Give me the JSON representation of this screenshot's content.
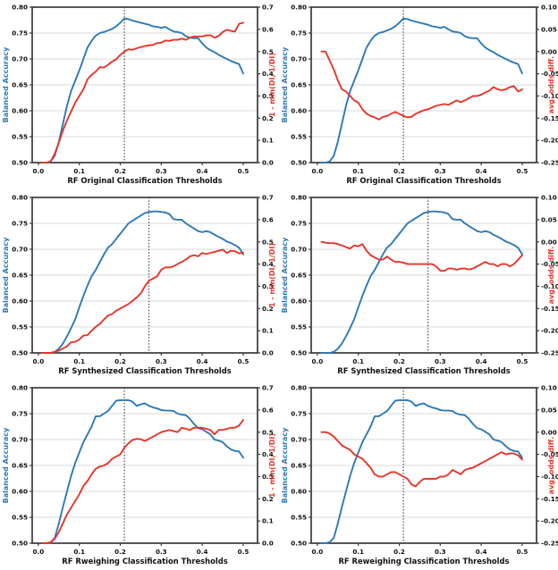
{
  "colors": {
    "accent_blue": "#2e79b5",
    "accent_red": "#e6352b",
    "grid": "#d9d9d9",
    "spine": "#3a3a3a",
    "tick_text": "#111111",
    "vline": "#333333",
    "background": "#ffffff"
  },
  "chart_data": {
    "type": "line",
    "legend_position": "none",
    "grid": "horizontal",
    "x": [
      0.01,
      0.02,
      0.03,
      0.04,
      0.05,
      0.06,
      0.07,
      0.08,
      0.09,
      0.1,
      0.11,
      0.12,
      0.13,
      0.14,
      0.15,
      0.16,
      0.17,
      0.18,
      0.19,
      0.2,
      0.21,
      0.22,
      0.23,
      0.24,
      0.25,
      0.26,
      0.27,
      0.28,
      0.29,
      0.3,
      0.31,
      0.32,
      0.33,
      0.34,
      0.35,
      0.36,
      0.37,
      0.38,
      0.39,
      0.4,
      0.41,
      0.42,
      0.43,
      0.44,
      0.45,
      0.46,
      0.47,
      0.48,
      0.49,
      0.5
    ],
    "xlim": [
      -0.015,
      0.535
    ],
    "x_ticks": {
      "values": [
        0.0,
        0.1,
        0.2,
        0.3,
        0.4,
        0.5
      ],
      "labels": [
        "0.0",
        "0.1",
        "0.2",
        "0.3",
        "0.4",
        "0.5"
      ]
    },
    "left_axis": {
      "label": "Balanced Accuracy",
      "lim": [
        0.5,
        0.8
      ],
      "tick_values": [
        0.5,
        0.55,
        0.6,
        0.65,
        0.7,
        0.75,
        0.8
      ],
      "tick_labels": [
        "0.50",
        "0.55",
        "0.60",
        "0.65",
        "0.70",
        "0.75",
        "0.80"
      ]
    },
    "right_axis_di": {
      "label": "1 - min(DI, 1/DI)",
      "lim": [
        0.0,
        0.7
      ],
      "tick_values": [
        0.0,
        0.1,
        0.2,
        0.3,
        0.4,
        0.5,
        0.6,
        0.7
      ],
      "tick_labels": [
        "0.0",
        "0.1",
        "0.2",
        "0.3",
        "0.4",
        "0.5",
        "0.6",
        "0.7"
      ]
    },
    "right_axis_odds": {
      "label": "avg. odds diff.",
      "lim": [
        -0.25,
        0.1
      ],
      "tick_values": [
        -0.25,
        -0.2,
        -0.15,
        -0.1,
        -0.05,
        0.0,
        0.05,
        0.1
      ],
      "tick_labels": [
        "-0.25",
        "-0.20",
        "-0.15",
        "-0.10",
        "-0.05",
        "0.00",
        "0.05",
        "0.10"
      ]
    },
    "charts": [
      {
        "xlabel": "RF Original Classification Thresholds",
        "right_axis": "di",
        "vline_x": 0.21,
        "series": [
          {
            "name": "Balanced Accuracy",
            "axis": "left",
            "color_key": "accent_blue",
            "values": [
              0.5,
              0.5,
              0.502,
              0.513,
              0.54,
              0.575,
              0.61,
              0.638,
              0.658,
              0.678,
              0.7,
              0.722,
              0.735,
              0.745,
              0.75,
              0.752,
              0.755,
              0.758,
              0.763,
              0.77,
              0.778,
              0.777,
              0.774,
              0.772,
              0.77,
              0.768,
              0.766,
              0.763,
              0.762,
              0.76,
              0.762,
              0.757,
              0.753,
              0.752,
              0.75,
              0.744,
              0.741,
              0.74,
              0.74,
              0.73,
              0.722,
              0.717,
              0.713,
              0.708,
              0.704,
              0.7,
              0.696,
              0.693,
              0.69,
              0.672
            ]
          },
          {
            "name": "1 - min(DI, 1/DI)",
            "axis": "right",
            "color_key": "accent_red",
            "values": [
              0.0,
              0.0,
              0.005,
              0.04,
              0.09,
              0.145,
              0.19,
              0.23,
              0.27,
              0.3,
              0.33,
              0.375,
              0.395,
              0.41,
              0.43,
              0.428,
              0.44,
              0.455,
              0.465,
              0.485,
              0.5,
              0.51,
              0.508,
              0.515,
              0.52,
              0.525,
              0.528,
              0.53,
              0.538,
              0.54,
              0.55,
              0.548,
              0.553,
              0.553,
              0.558,
              0.553,
              0.563,
              0.568,
              0.568,
              0.568,
              0.573,
              0.573,
              0.563,
              0.57,
              0.588,
              0.598,
              0.593,
              0.59,
              0.625,
              0.63
            ]
          }
        ]
      },
      {
        "xlabel": "RF Original Classification Thresholds",
        "right_axis": "odds",
        "vline_x": 0.21,
        "series": [
          {
            "name": "Balanced Accuracy",
            "axis": "left",
            "color_key": "accent_blue",
            "values": [
              0.5,
              0.5,
              0.502,
              0.513,
              0.54,
              0.575,
              0.61,
              0.638,
              0.658,
              0.678,
              0.7,
              0.722,
              0.735,
              0.745,
              0.75,
              0.752,
              0.755,
              0.758,
              0.763,
              0.77,
              0.778,
              0.777,
              0.774,
              0.772,
              0.77,
              0.768,
              0.766,
              0.763,
              0.762,
              0.76,
              0.762,
              0.757,
              0.753,
              0.752,
              0.75,
              0.744,
              0.741,
              0.74,
              0.74,
              0.73,
              0.722,
              0.717,
              0.713,
              0.708,
              0.704,
              0.7,
              0.696,
              0.693,
              0.69,
              0.672
            ]
          },
          {
            "name": "avg. odds diff.",
            "axis": "right",
            "color_key": "accent_red",
            "values": [
              0.0,
              0.0,
              -0.02,
              -0.04,
              -0.065,
              -0.085,
              -0.09,
              -0.1,
              -0.11,
              -0.115,
              -0.13,
              -0.14,
              -0.145,
              -0.148,
              -0.153,
              -0.147,
              -0.145,
              -0.14,
              -0.136,
              -0.14,
              -0.145,
              -0.148,
              -0.147,
              -0.14,
              -0.136,
              -0.132,
              -0.13,
              -0.126,
              -0.122,
              -0.12,
              -0.118,
              -0.12,
              -0.115,
              -0.11,
              -0.114,
              -0.11,
              -0.105,
              -0.1,
              -0.1,
              -0.097,
              -0.092,
              -0.088,
              -0.08,
              -0.085,
              -0.087,
              -0.085,
              -0.08,
              -0.078,
              -0.09,
              -0.085
            ]
          }
        ]
      },
      {
        "xlabel": "RF Synthesized Classification Thresholds",
        "right_axis": "di",
        "vline_x": 0.27,
        "series": [
          {
            "name": "Balanced Accuracy",
            "axis": "left",
            "color_key": "accent_blue",
            "values": [
              0.5,
              0.5,
              0.5,
              0.502,
              0.508,
              0.518,
              0.532,
              0.548,
              0.565,
              0.588,
              0.61,
              0.63,
              0.648,
              0.66,
              0.675,
              0.69,
              0.703,
              0.71,
              0.72,
              0.73,
              0.74,
              0.75,
              0.755,
              0.76,
              0.765,
              0.77,
              0.772,
              0.773,
              0.773,
              0.772,
              0.771,
              0.768,
              0.758,
              0.757,
              0.757,
              0.75,
              0.745,
              0.74,
              0.735,
              0.733,
              0.735,
              0.733,
              0.728,
              0.724,
              0.72,
              0.715,
              0.712,
              0.708,
              0.703,
              0.69
            ]
          },
          {
            "name": "1 - min(DI, 1/DI)",
            "axis": "right",
            "color_key": "accent_red",
            "values": [
              0.0,
              0.0,
              0.0,
              0.005,
              0.01,
              0.02,
              0.03,
              0.048,
              0.05,
              0.06,
              0.078,
              0.08,
              0.1,
              0.118,
              0.13,
              0.15,
              0.168,
              0.175,
              0.19,
              0.2,
              0.21,
              0.22,
              0.235,
              0.25,
              0.268,
              0.3,
              0.325,
              0.335,
              0.345,
              0.375,
              0.385,
              0.385,
              0.39,
              0.4,
              0.41,
              0.42,
              0.435,
              0.44,
              0.435,
              0.45,
              0.445,
              0.45,
              0.455,
              0.46,
              0.465,
              0.45,
              0.46,
              0.458,
              0.448,
              0.452
            ]
          }
        ]
      },
      {
        "xlabel": "RF Synthesized Classification Thresholds",
        "right_axis": "odds",
        "vline_x": 0.27,
        "series": [
          {
            "name": "Balanced Accuracy",
            "axis": "left",
            "color_key": "accent_blue",
            "values": [
              0.5,
              0.5,
              0.5,
              0.502,
              0.508,
              0.518,
              0.532,
              0.548,
              0.565,
              0.588,
              0.61,
              0.63,
              0.648,
              0.66,
              0.675,
              0.69,
              0.703,
              0.71,
              0.72,
              0.73,
              0.74,
              0.75,
              0.755,
              0.76,
              0.765,
              0.77,
              0.772,
              0.773,
              0.773,
              0.772,
              0.771,
              0.768,
              0.758,
              0.757,
              0.757,
              0.75,
              0.745,
              0.74,
              0.735,
              0.733,
              0.735,
              0.733,
              0.728,
              0.724,
              0.72,
              0.715,
              0.712,
              0.708,
              0.703,
              0.69
            ]
          },
          {
            "name": "avg. odds diff.",
            "axis": "right",
            "color_key": "accent_red",
            "values": [
              0.0,
              -0.002,
              -0.003,
              -0.003,
              -0.005,
              -0.008,
              -0.012,
              -0.015,
              -0.008,
              -0.01,
              -0.005,
              -0.02,
              -0.03,
              -0.035,
              -0.04,
              -0.04,
              -0.033,
              -0.04,
              -0.045,
              -0.045,
              -0.047,
              -0.05,
              -0.05,
              -0.05,
              -0.05,
              -0.05,
              -0.05,
              -0.05,
              -0.055,
              -0.065,
              -0.065,
              -0.06,
              -0.06,
              -0.063,
              -0.06,
              -0.06,
              -0.062,
              -0.06,
              -0.055,
              -0.05,
              -0.045,
              -0.05,
              -0.05,
              -0.055,
              -0.05,
              -0.05,
              -0.055,
              -0.05,
              -0.04,
              -0.03
            ]
          }
        ]
      },
      {
        "xlabel": "RF Rweighing Classification Thresholds",
        "right_axis": "di",
        "vline_x": 0.21,
        "series": [
          {
            "name": "Balanced Accuracy",
            "axis": "left",
            "color_key": "accent_blue",
            "values": [
              0.5,
              0.5,
              0.502,
              0.51,
              0.538,
              0.57,
              0.6,
              0.63,
              0.655,
              0.675,
              0.695,
              0.71,
              0.725,
              0.745,
              0.745,
              0.75,
              0.755,
              0.765,
              0.775,
              0.776,
              0.776,
              0.776,
              0.773,
              0.765,
              0.768,
              0.77,
              0.765,
              0.762,
              0.76,
              0.757,
              0.756,
              0.756,
              0.755,
              0.75,
              0.748,
              0.747,
              0.74,
              0.73,
              0.722,
              0.72,
              0.715,
              0.71,
              0.7,
              0.698,
              0.695,
              0.687,
              0.681,
              0.678,
              0.677,
              0.665
            ]
          },
          {
            "name": "1 - min(DI, 1/DI)",
            "axis": "right",
            "color_key": "accent_red",
            "values": [
              0.0,
              0.0,
              0.003,
              0.02,
              0.05,
              0.09,
              0.13,
              0.16,
              0.19,
              0.22,
              0.258,
              0.28,
              0.31,
              0.335,
              0.345,
              0.35,
              0.36,
              0.38,
              0.39,
              0.4,
              0.43,
              0.45,
              0.465,
              0.47,
              0.468,
              0.46,
              0.47,
              0.48,
              0.49,
              0.5,
              0.505,
              0.51,
              0.505,
              0.5,
              0.52,
              0.515,
              0.51,
              0.52,
              0.52,
              0.52,
              0.515,
              0.51,
              0.49,
              0.51,
              0.51,
              0.515,
              0.52,
              0.52,
              0.53,
              0.555
            ]
          }
        ]
      },
      {
        "xlabel": "RF Reweighing Classification Thresholds",
        "right_axis": "odds",
        "vline_x": 0.21,
        "series": [
          {
            "name": "Balanced Accuracy",
            "axis": "left",
            "color_key": "accent_blue",
            "values": [
              0.5,
              0.5,
              0.502,
              0.51,
              0.538,
              0.57,
              0.6,
              0.63,
              0.655,
              0.675,
              0.695,
              0.71,
              0.725,
              0.745,
              0.745,
              0.75,
              0.755,
              0.765,
              0.775,
              0.776,
              0.776,
              0.776,
              0.773,
              0.765,
              0.768,
              0.77,
              0.765,
              0.762,
              0.76,
              0.757,
              0.756,
              0.756,
              0.755,
              0.75,
              0.748,
              0.747,
              0.74,
              0.73,
              0.722,
              0.72,
              0.715,
              0.71,
              0.7,
              0.698,
              0.695,
              0.687,
              0.681,
              0.678,
              0.677,
              0.665
            ]
          },
          {
            "name": "avg. odds diff.",
            "axis": "right",
            "color_key": "accent_red",
            "values": [
              0.0,
              0.0,
              -0.003,
              -0.01,
              -0.02,
              -0.03,
              -0.035,
              -0.04,
              -0.05,
              -0.055,
              -0.06,
              -0.07,
              -0.08,
              -0.095,
              -0.1,
              -0.1,
              -0.095,
              -0.09,
              -0.09,
              -0.095,
              -0.1,
              -0.105,
              -0.118,
              -0.122,
              -0.112,
              -0.105,
              -0.105,
              -0.105,
              -0.105,
              -0.1,
              -0.1,
              -0.095,
              -0.085,
              -0.09,
              -0.095,
              -0.085,
              -0.082,
              -0.08,
              -0.075,
              -0.07,
              -0.065,
              -0.06,
              -0.055,
              -0.05,
              -0.045,
              -0.05,
              -0.048,
              -0.048,
              -0.052,
              -0.062
            ]
          }
        ]
      }
    ]
  }
}
